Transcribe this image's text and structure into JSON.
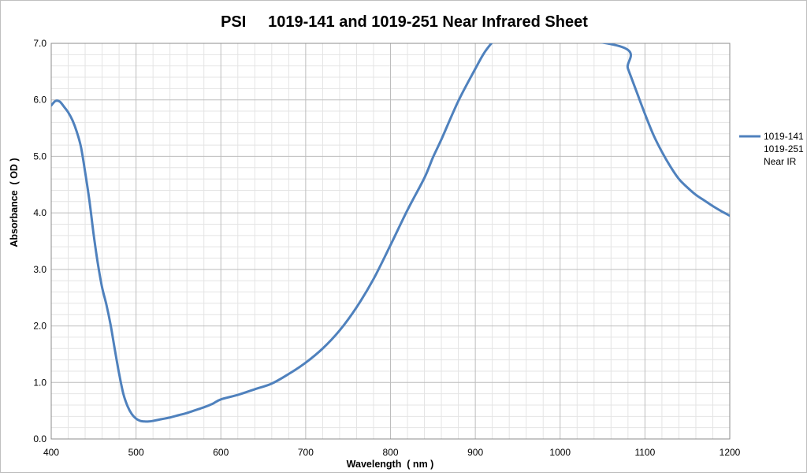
{
  "chart_data": {
    "type": "line",
    "title": "PSI     1019-141 and 1019-251 Near Infrared Sheet",
    "xlabel": "Wavelength  ( nm )",
    "ylabel": "Absorbance  ( OD )",
    "xlim": [
      400,
      1200
    ],
    "ylim": [
      0,
      7
    ],
    "x_ticks": [
      "400",
      "500",
      "600",
      "700",
      "800",
      "900",
      "1000",
      "1100",
      "1200"
    ],
    "y_ticks": [
      "0.0",
      "1.0",
      "2.0",
      "3.0",
      "4.0",
      "5.0",
      "6.0",
      "7.0"
    ],
    "grid": true,
    "legend_position": "right",
    "series": [
      {
        "name": "1019-141 1019-251 Near IR",
        "legend_lines": [
          "1019-141",
          "1019-251",
          "Near IR"
        ],
        "color": "#4f81bd",
        "x": [
          400,
          405,
          410,
          415,
          420,
          425,
          430,
          435,
          440,
          445,
          450,
          455,
          460,
          465,
          470,
          475,
          480,
          485,
          490,
          495,
          500,
          505,
          510,
          515,
          520,
          530,
          540,
          550,
          560,
          570,
          580,
          590,
          600,
          620,
          640,
          660,
          680,
          700,
          720,
          740,
          760,
          780,
          800,
          820,
          840,
          850,
          860,
          880,
          900,
          910,
          920,
          930,
          1070,
          1080,
          1090,
          1100,
          1110,
          1120,
          1130,
          1140,
          1150,
          1160,
          1170,
          1180,
          1190,
          1200
        ],
        "y": [
          5.9,
          5.98,
          5.97,
          5.88,
          5.78,
          5.64,
          5.44,
          5.17,
          4.72,
          4.22,
          3.62,
          3.1,
          2.68,
          2.38,
          2.02,
          1.58,
          1.16,
          0.8,
          0.58,
          0.44,
          0.36,
          0.32,
          0.31,
          0.31,
          0.32,
          0.35,
          0.38,
          0.42,
          0.46,
          0.51,
          0.56,
          0.62,
          0.7,
          0.78,
          0.88,
          0.98,
          1.15,
          1.35,
          1.6,
          1.92,
          2.33,
          2.83,
          3.43,
          4.05,
          4.62,
          4.98,
          5.3,
          5.98,
          6.55,
          6.82,
          7.02,
          7.2,
          6.95,
          6.55,
          6.15,
          5.75,
          5.38,
          5.08,
          4.82,
          4.6,
          4.45,
          4.32,
          4.22,
          4.12,
          4.03,
          3.95
        ]
      }
    ]
  }
}
